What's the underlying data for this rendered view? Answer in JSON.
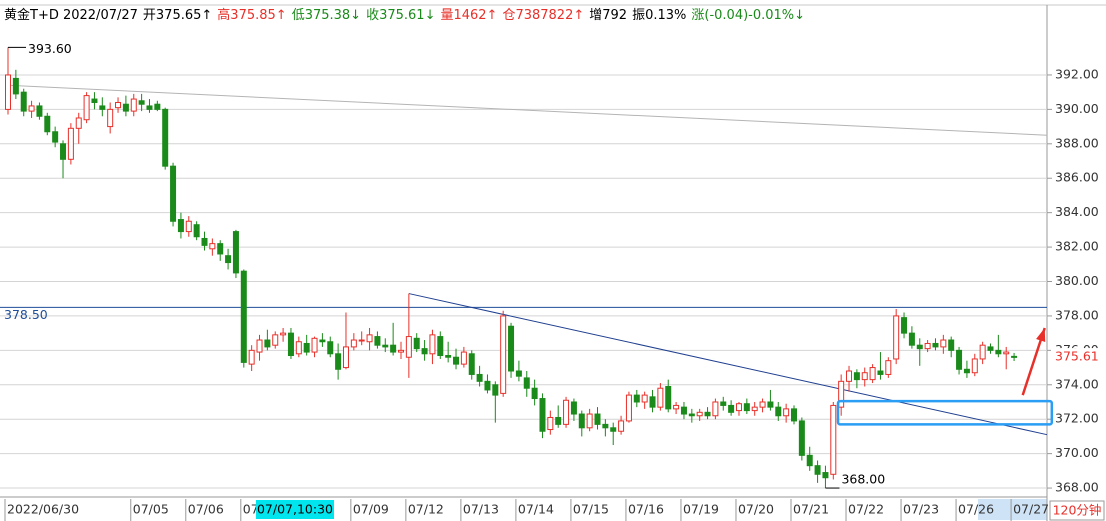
{
  "chart_data": {
    "type": "candlestick",
    "header": {
      "items": [
        {
          "text": "黄金T+D 2022/07/27",
          "color": "#000000"
        },
        {
          "text": "开375.65↑",
          "color": "#000000"
        },
        {
          "text": "高375.85↑",
          "color": "#e8302a"
        },
        {
          "text": "低375.38↓",
          "color": "#1a8a1a"
        },
        {
          "text": "收375.61↓",
          "color": "#1a8a1a"
        },
        {
          "text": "量1462↑",
          "color": "#e8302a"
        },
        {
          "text": "仓7387822↑",
          "color": "#e8302a"
        },
        {
          "text": "增792",
          "color": "#000000"
        },
        {
          "text": "振0.13%",
          "color": "#000000"
        },
        {
          "text": "涨(-0.04)-0.01%↓",
          "color": "#1a8a1a"
        }
      ]
    },
    "categories": [
      "2022/06/30",
      null,
      null,
      null,
      null,
      null,
      null,
      null,
      null,
      null,
      null,
      null,
      null,
      null,
      null,
      null,
      "07/05",
      null,
      null,
      null,
      null,
      null,
      null,
      "07/06",
      null,
      null,
      null,
      null,
      null,
      null,
      "07/07",
      null,
      null,
      null,
      null,
      null,
      null,
      null,
      null,
      null,
      null,
      null,
      null,
      null,
      "07/09",
      null,
      null,
      null,
      null,
      null,
      null,
      "07/12",
      null,
      null,
      null,
      null,
      null,
      null,
      "07/13",
      null,
      null,
      null,
      null,
      null,
      null,
      "07/14",
      null,
      null,
      null,
      null,
      null,
      null,
      "07/15",
      null,
      null,
      null,
      null,
      null,
      null,
      "07/16",
      null,
      null,
      null,
      null,
      null,
      null,
      "07/19",
      null,
      null,
      null,
      null,
      null,
      null,
      "07/20",
      null,
      null,
      null,
      null,
      null,
      null,
      "07/21",
      null,
      null,
      null,
      null,
      null,
      null,
      "07/22",
      null,
      null,
      null,
      null,
      null,
      null,
      "07/23",
      null,
      null,
      null,
      null,
      null,
      null,
      "07/26",
      null,
      null,
      null,
      null,
      null,
      null,
      "07/27"
    ],
    "open": [
      390.0,
      391.8,
      391.0,
      389.9,
      390.2,
      389.6,
      388.7,
      388.0,
      387.1,
      388.9,
      389.4,
      390.6,
      390.2,
      389.0,
      390.1,
      390.3,
      389.9,
      390.5,
      390.2,
      390.3,
      390.0,
      386.7,
      383.6,
      382.9,
      383.3,
      382.5,
      381.9,
      382.2,
      381.5,
      382.9,
      380.6,
      375.2,
      375.9,
      376.6,
      376.3,
      376.9,
      377.0,
      375.8,
      376.4,
      375.9,
      376.6,
      376.5,
      375.8,
      375.0,
      376.2,
      376.6,
      376.5,
      376.8,
      376.3,
      376.3,
      375.9,
      375.6,
      376.7,
      376.1,
      375.8,
      376.8,
      375.7,
      375.6,
      375.2,
      375.8,
      374.6,
      374.2,
      374.0,
      373.5,
      377.4,
      374.8,
      374.4,
      373.8,
      373.2,
      371.4,
      372.1,
      371.7,
      373.0,
      372.3,
      371.5,
      372.3,
      371.7,
      371.5,
      371.3,
      371.9,
      373.4,
      373.0,
      373.3,
      372.7,
      373.9,
      372.6,
      372.7,
      372.3,
      372.2,
      372.4,
      372.2,
      373.0,
      372.8,
      372.5,
      372.9,
      372.5,
      372.7,
      373.0,
      372.7,
      372.2,
      372.6,
      371.9,
      369.9,
      369.3,
      368.9,
      368.8,
      372.7,
      374.2,
      374.7,
      374.3,
      374.3,
      374.8,
      374.6,
      375.5,
      377.9,
      377.0,
      376.3,
      376.1,
      376.4,
      376.2,
      376.6,
      376.0,
      374.9,
      374.7,
      375.5,
      376.2,
      376.0,
      375.8,
      375.65
    ],
    "high": [
      393.6,
      392.3,
      391.2,
      390.5,
      390.4,
      389.8,
      389.0,
      388.2,
      389.2,
      389.8,
      391.0,
      391.0,
      390.7,
      390.4,
      390.7,
      390.8,
      390.9,
      390.9,
      390.6,
      390.5,
      390.1,
      386.9,
      384.0,
      383.8,
      383.5,
      382.9,
      382.5,
      382.4,
      381.9,
      383.0,
      380.7,
      376.3,
      376.9,
      377.2,
      377.1,
      377.3,
      377.3,
      376.8,
      376.9,
      376.8,
      377.0,
      376.8,
      376.4,
      378.2,
      377.0,
      377.1,
      377.3,
      377.1,
      376.7,
      377.6,
      376.5,
      379.3,
      377.0,
      376.6,
      377.2,
      377.1,
      376.5,
      376.1,
      376.2,
      376.0,
      375.1,
      374.6,
      374.2,
      378.3,
      377.6,
      375.4,
      374.8,
      374.3,
      373.5,
      372.5,
      372.8,
      373.3,
      373.2,
      372.5,
      372.6,
      372.7,
      372.0,
      371.8,
      372.2,
      373.6,
      373.7,
      373.6,
      373.7,
      374.1,
      374.3,
      373.0,
      373.0,
      372.6,
      372.6,
      372.7,
      373.2,
      373.3,
      373.1,
      373.0,
      373.2,
      373.0,
      373.2,
      373.7,
      373.0,
      372.9,
      372.8,
      372.1,
      370.4,
      369.6,
      369.3,
      373.0,
      374.6,
      375.1,
      374.9,
      375.0,
      375.2,
      375.9,
      375.6,
      378.4,
      378.2,
      377.4,
      376.7,
      376.6,
      376.7,
      376.9,
      376.8,
      376.2,
      375.4,
      375.8,
      376.5,
      376.4,
      376.9,
      376.2,
      375.85
    ],
    "low": [
      389.7,
      390.6,
      389.6,
      389.5,
      389.4,
      388.5,
      387.8,
      386.0,
      386.8,
      388.0,
      389.2,
      390.0,
      389.6,
      388.6,
      389.8,
      389.6,
      389.6,
      389.9,
      389.8,
      389.9,
      386.5,
      383.2,
      382.5,
      382.6,
      382.4,
      381.8,
      381.5,
      381.2,
      380.7,
      380.2,
      375.0,
      374.8,
      375.4,
      376.0,
      376.1,
      376.5,
      375.5,
      375.6,
      375.7,
      375.6,
      376.2,
      375.6,
      374.3,
      374.9,
      376.0,
      376.3,
      376.0,
      376.1,
      375.9,
      375.7,
      375.5,
      374.4,
      375.9,
      375.4,
      375.2,
      375.5,
      375.3,
      374.9,
      375.0,
      374.3,
      373.9,
      373.5,
      371.8,
      373.3,
      374.4,
      374.2,
      373.3,
      372.8,
      370.9,
      371.1,
      371.5,
      371.5,
      371.9,
      371.0,
      371.3,
      371.4,
      371.0,
      370.5,
      371.1,
      371.8,
      372.7,
      372.6,
      372.4,
      372.5,
      372.4,
      372.3,
      372.0,
      371.8,
      371.9,
      372.0,
      372.0,
      372.5,
      372.2,
      372.2,
      372.3,
      372.2,
      372.4,
      372.5,
      371.9,
      371.8,
      371.7,
      369.6,
      369.0,
      368.3,
      368.0,
      368.5,
      372.2,
      373.6,
      373.8,
      373.9,
      374.1,
      374.3,
      374.4,
      375.2,
      376.7,
      376.1,
      375.1,
      375.9,
      376.0,
      375.8,
      375.6,
      374.6,
      374.4,
      374.5,
      375.2,
      375.8,
      375.6,
      374.9,
      375.38
    ],
    "close": [
      392.0,
      390.9,
      389.9,
      390.2,
      389.6,
      388.7,
      388.1,
      387.1,
      388.9,
      389.5,
      390.8,
      390.4,
      390.0,
      390.0,
      390.4,
      389.9,
      390.6,
      390.3,
      390.0,
      390.0,
      386.7,
      383.5,
      382.9,
      383.5,
      382.6,
      382.1,
      382.2,
      381.6,
      381.1,
      380.5,
      375.3,
      376.0,
      376.6,
      376.2,
      376.9,
      377.0,
      375.7,
      376.5,
      375.9,
      376.7,
      376.5,
      375.8,
      374.9,
      376.2,
      376.6,
      376.6,
      376.9,
      376.3,
      376.2,
      375.9,
      376.0,
      376.8,
      376.1,
      375.8,
      376.9,
      375.7,
      375.6,
      375.2,
      375.9,
      374.6,
      374.2,
      373.7,
      373.4,
      378.0,
      374.8,
      374.5,
      373.8,
      373.2,
      371.3,
      372.1,
      371.7,
      373.1,
      372.3,
      371.5,
      372.3,
      371.7,
      371.5,
      371.3,
      371.9,
      373.4,
      373.0,
      373.4,
      372.7,
      373.8,
      372.6,
      372.8,
      372.3,
      372.2,
      372.4,
      372.2,
      373.0,
      372.8,
      372.4,
      372.9,
      372.5,
      372.7,
      373.0,
      372.7,
      372.2,
      372.6,
      371.9,
      369.9,
      369.3,
      368.8,
      368.6,
      372.8,
      374.2,
      374.8,
      374.3,
      374.7,
      375.0,
      374.6,
      375.4,
      378.0,
      377.0,
      376.3,
      376.1,
      376.4,
      376.2,
      376.6,
      376.0,
      374.9,
      374.7,
      375.5,
      376.3,
      376.0,
      375.8,
      375.9,
      375.61
    ],
    "up_color": "#e8302a",
    "down_color": "#1a8a1a",
    "ylim": [
      367.48,
      395.89
    ],
    "yticks": [
      {
        "value": 368,
        "label": "368.00"
      },
      {
        "value": 370,
        "label": "370.00"
      },
      {
        "value": 372,
        "label": "372.00"
      },
      {
        "value": 374,
        "label": "374.00"
      },
      {
        "value": 376,
        "label": "376.00"
      },
      {
        "value": 378,
        "label": "378.00"
      },
      {
        "value": 380,
        "label": "380.00"
      },
      {
        "value": 382,
        "label": "382.00"
      },
      {
        "value": 384,
        "label": "384.00"
      },
      {
        "value": 386,
        "label": "386.00"
      },
      {
        "value": 388,
        "label": "388.00"
      },
      {
        "value": 390,
        "label": "390.00"
      },
      {
        "value": 392,
        "label": "392.00"
      }
    ],
    "grid": true,
    "hline": {
      "value": 378.5,
      "label": "378.50",
      "color": "#1f4e9a"
    },
    "high_label": {
      "x": 0,
      "value": 393.6,
      "label": "393.60"
    },
    "low_label": {
      "x": 104,
      "value": 368,
      "label": "368.00"
    },
    "last_label": {
      "value": 375.61,
      "label": "375.61",
      "color": "#e8302a"
    },
    "cursor_label": "07/07,10:30",
    "period_label": "120分钟",
    "trendlines": [
      {
        "color": "#b4b4b4",
        "x": [
          0,
          132.2
        ],
        "y": [
          391.4,
          388.5
        ]
      },
      {
        "color": "#1f3f8f",
        "x": [
          51,
          132.2
        ],
        "y": [
          379.3,
          371.1
        ]
      }
    ],
    "box": {
      "color": "#2a9df4",
      "x": [
        105.6,
        132.8
      ],
      "y": [
        371.7,
        373.05
      ]
    },
    "arrow": {
      "color": "#e8302a",
      "x": [
        129.1,
        131.9
      ],
      "y": [
        373.4,
        377.3
      ]
    }
  }
}
